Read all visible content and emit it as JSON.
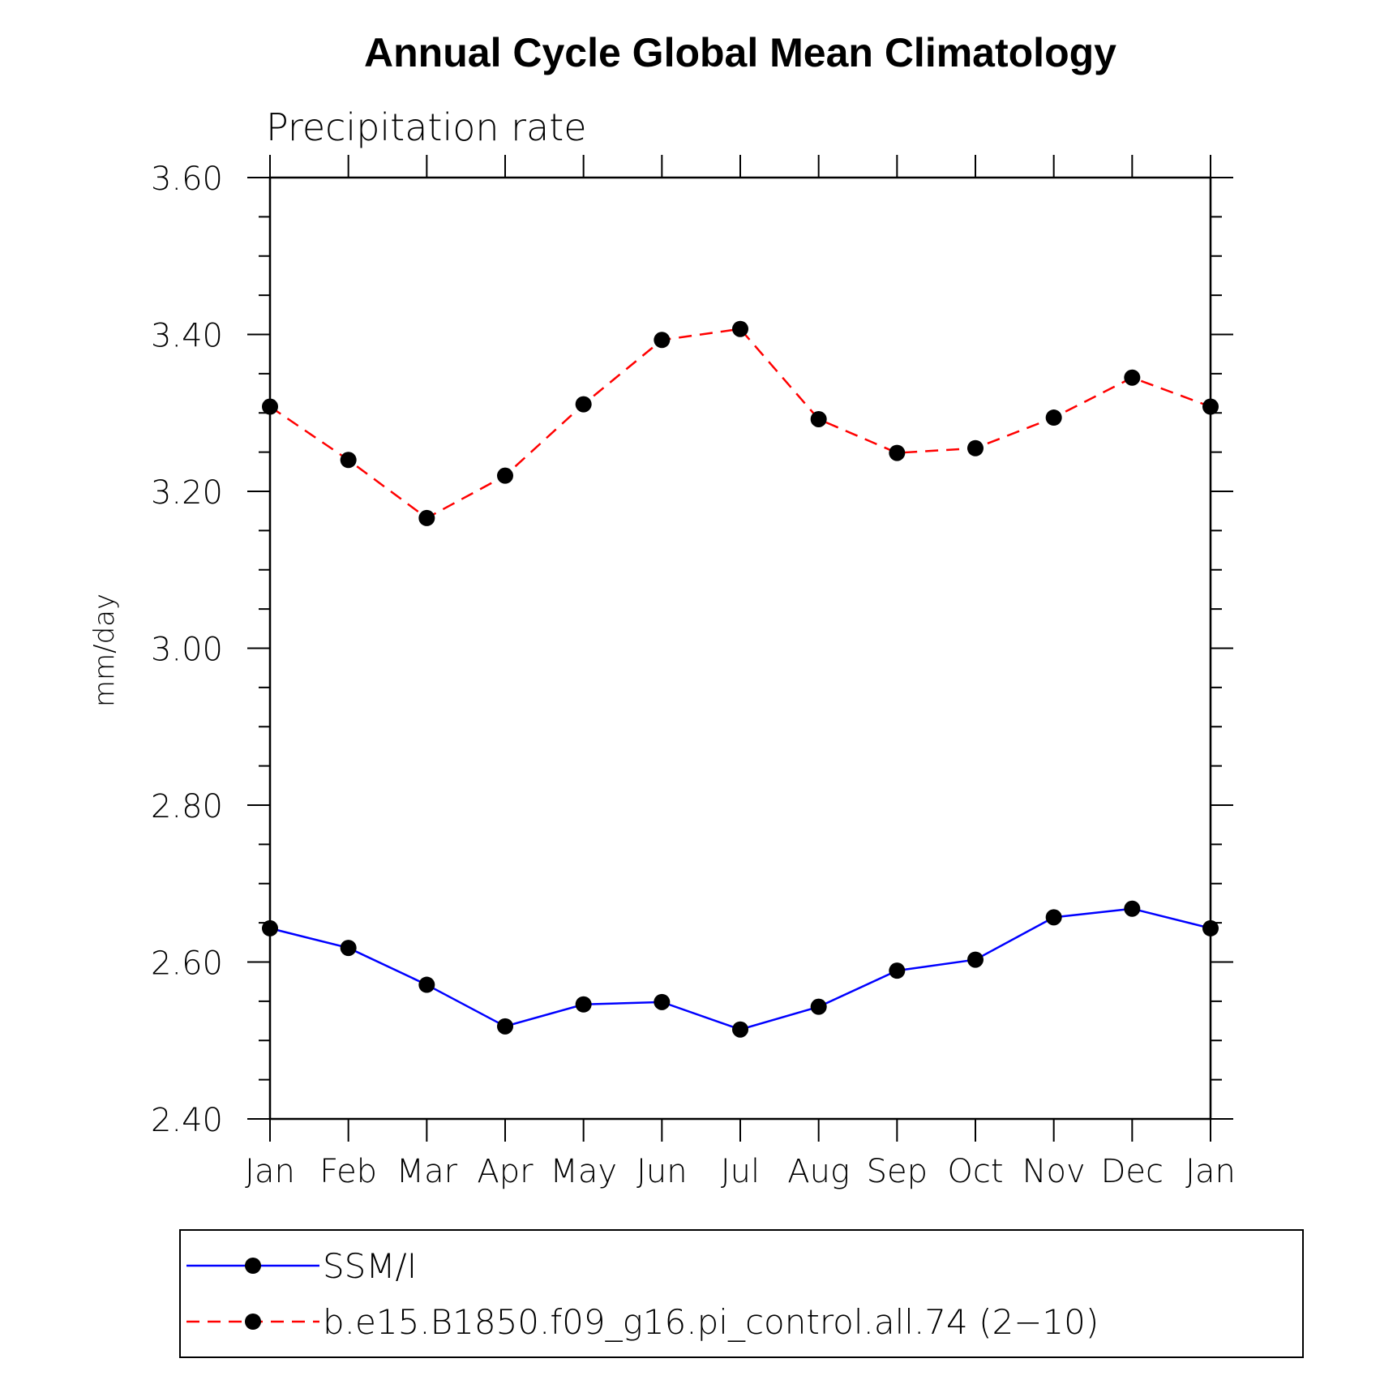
{
  "chart_data": {
    "type": "line",
    "title": "Annual Cycle Global Mean Climatology",
    "subtitle": "Precipitation rate",
    "xlabel": "",
    "ylabel": "mm/day",
    "categories": [
      "Jan",
      "Feb",
      "Mar",
      "Apr",
      "May",
      "Jun",
      "Jul",
      "Aug",
      "Sep",
      "Oct",
      "Nov",
      "Dec",
      "Jan"
    ],
    "ylim": [
      2.4,
      3.6
    ],
    "yticks": [
      "2.40",
      "2.60",
      "2.80",
      "3.00",
      "3.20",
      "3.40",
      "3.60"
    ],
    "yticks_values": [
      2.4,
      2.6,
      2.8,
      3.0,
      3.2,
      3.4,
      3.6
    ],
    "grid": false,
    "legend_position": "bottom",
    "series": [
      {
        "name": "SSM/I",
        "color": "#0000ff",
        "line_style": "solid",
        "marker": "filled-circle",
        "marker_color": "#000000",
        "values": [
          2.643,
          2.618,
          2.571,
          2.518,
          2.546,
          2.549,
          2.514,
          2.543,
          2.589,
          2.603,
          2.657,
          2.668,
          2.643
        ]
      },
      {
        "name": "b.e15.B1850.f09_g16.pi_control.all.74 (2−10)",
        "color": "#ff0000",
        "line_style": "dashed",
        "marker": "filled-circle",
        "marker_color": "#000000",
        "values": [
          3.308,
          3.24,
          3.166,
          3.22,
          3.311,
          3.393,
          3.407,
          3.292,
          3.249,
          3.255,
          3.294,
          3.345,
          3.308
        ]
      }
    ]
  }
}
